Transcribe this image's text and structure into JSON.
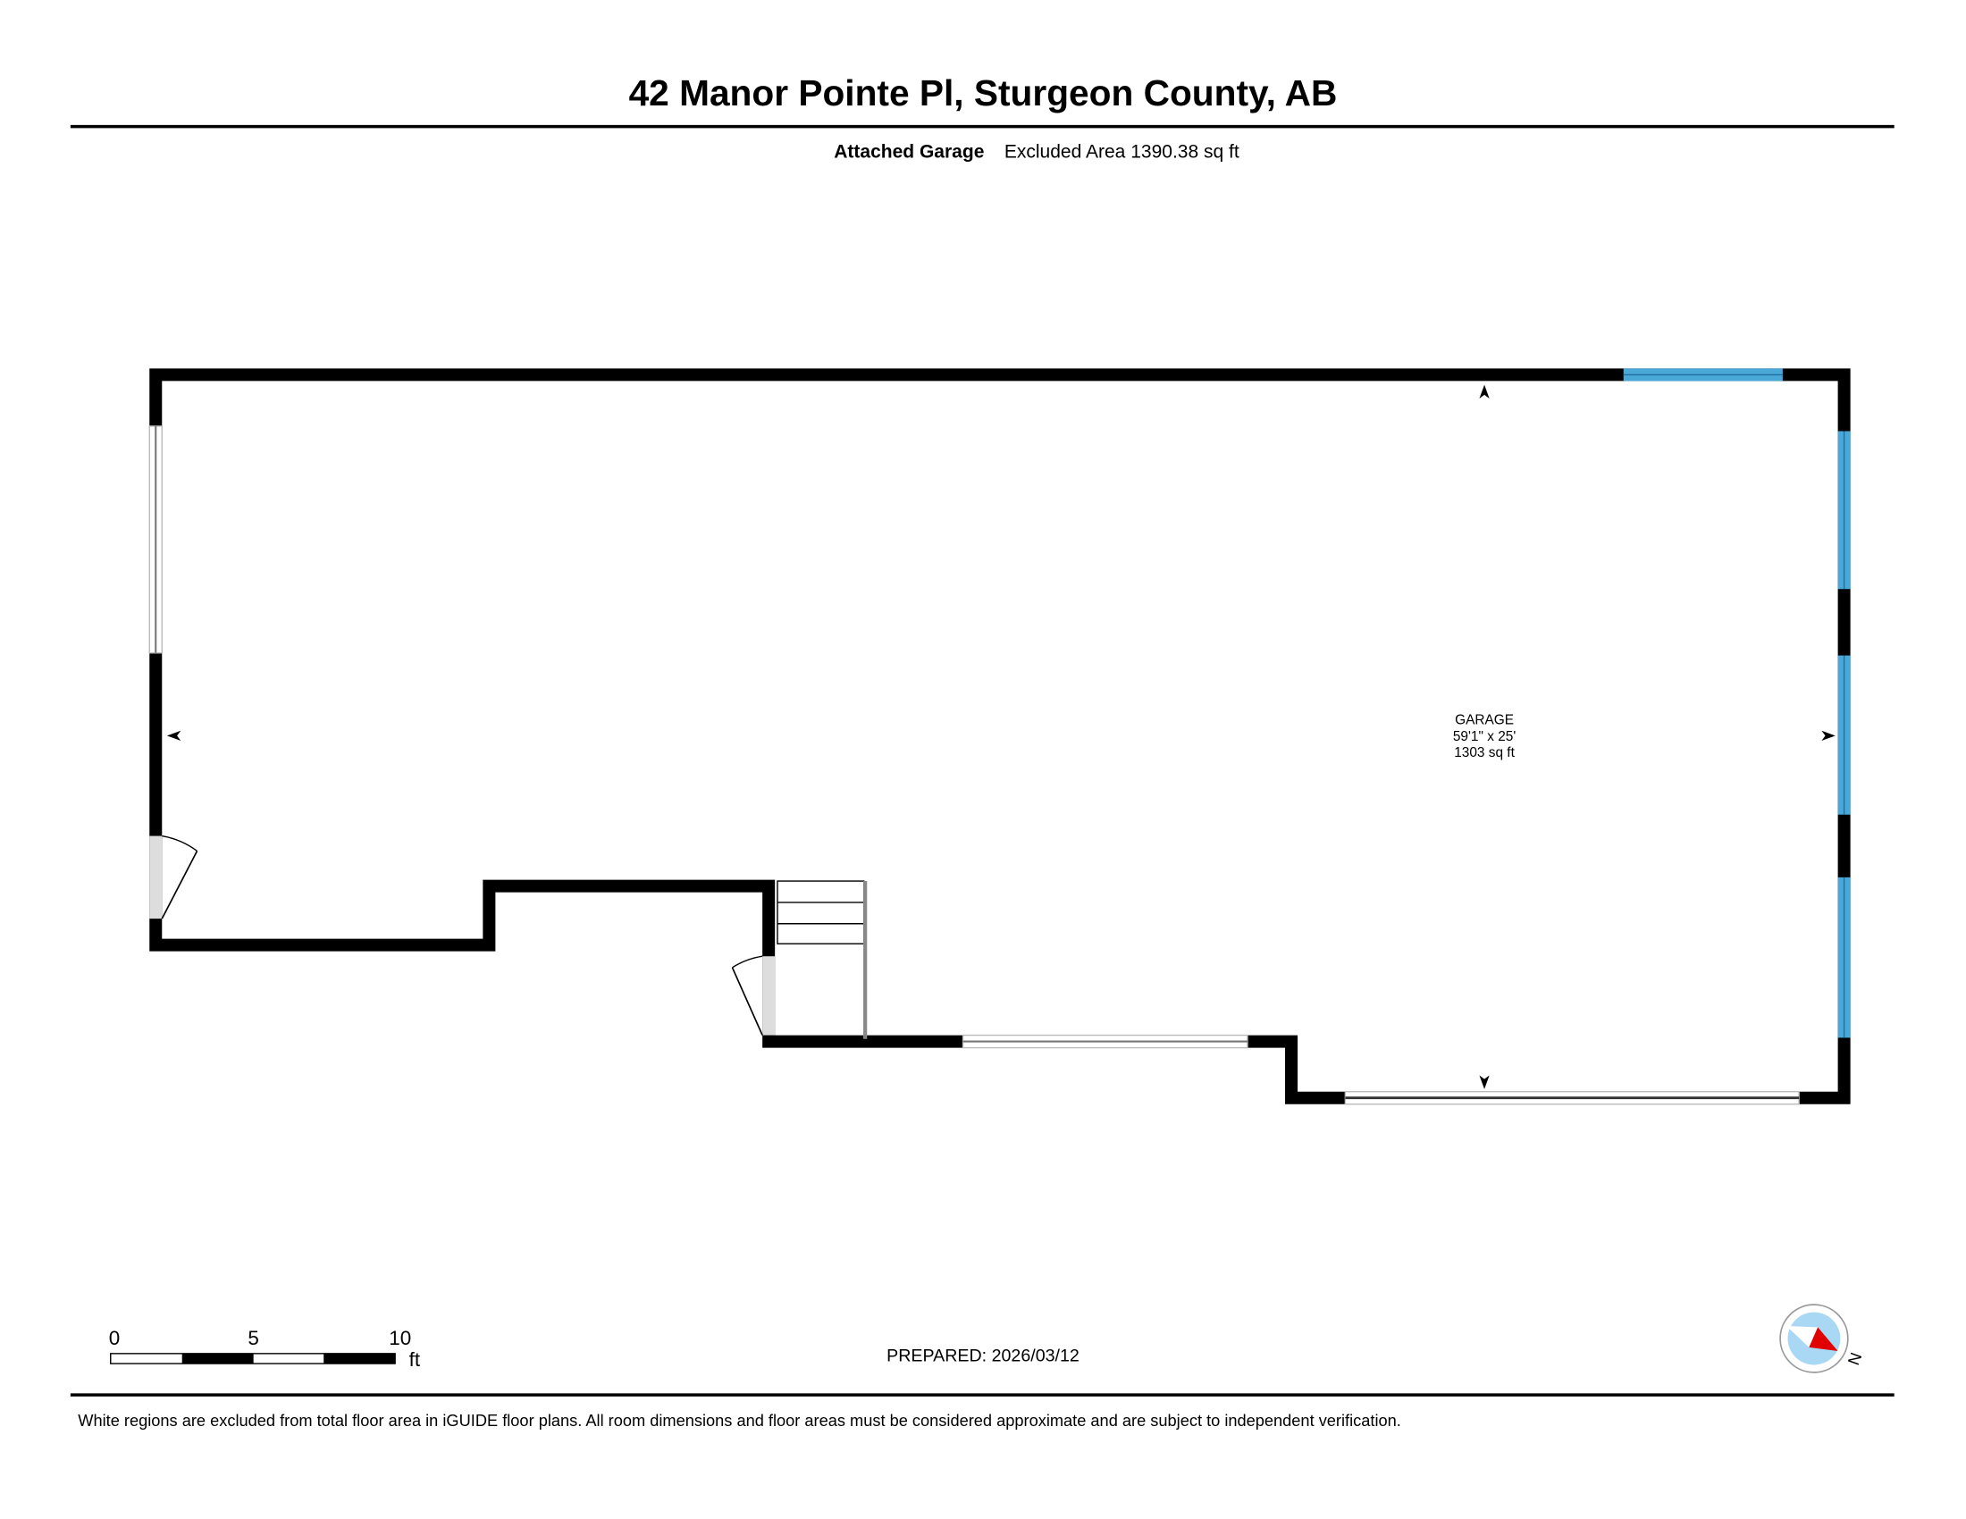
{
  "header": {
    "title": "42 Manor Pointe Pl, Sturgeon County, AB",
    "floor_label": "Attached Garage",
    "excluded_area": "Excluded Area 1390.38 sq ft"
  },
  "room": {
    "name": "GARAGE",
    "dimensions": "59'1\" x 25'",
    "area": "1303 sq ft"
  },
  "scale_bar": {
    "ticks": [
      "0",
      "5",
      "10"
    ],
    "unit": "ft"
  },
  "prepared": "PREPARED: 2026/03/12",
  "compass": {
    "label": "N",
    "icon": "compass-icon"
  },
  "footer": "White regions are excluded from total floor area in iGUIDE floor plans. All room dimensions and floor areas must be considered approximate and are subject to independent verification.",
  "colors": {
    "wall": "#000000",
    "window": "#4aa8d8",
    "compass_fill": "#a8d8f4",
    "compass_needle": "#e00000"
  }
}
